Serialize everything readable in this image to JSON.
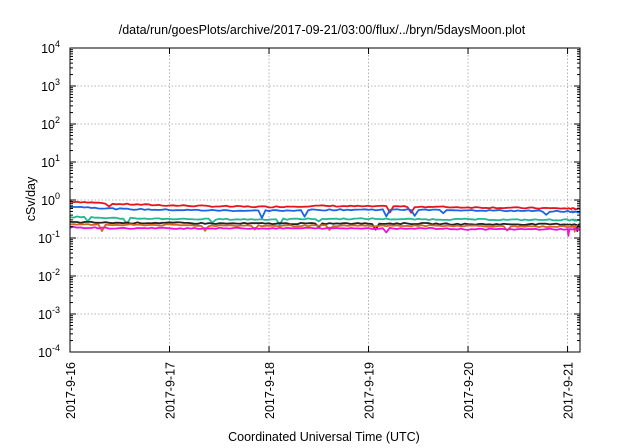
{
  "chart_data": {
    "type": "line",
    "title": "/data/run/goesPlots/archive/2017-09-21/03:00/flux/../bryn/5daysMoon.plot",
    "xlabel": "Coordinated Universal Time (UTC)",
    "ylabel": "cSv/day",
    "yscale": "log",
    "ylim": [
      0.0001,
      10000
    ],
    "y_ticks": [
      {
        "value": 0.0001,
        "mantissa": "10",
        "exp": "-4"
      },
      {
        "value": 0.001,
        "mantissa": "10",
        "exp": "-3"
      },
      {
        "value": 0.01,
        "mantissa": "10",
        "exp": "-2"
      },
      {
        "value": 0.1,
        "mantissa": "10",
        "exp": "-1"
      },
      {
        "value": 1,
        "mantissa": "10",
        "exp": "0"
      },
      {
        "value": 10,
        "mantissa": "10",
        "exp": "1"
      },
      {
        "value": 100,
        "mantissa": "10",
        "exp": "2"
      },
      {
        "value": 1000,
        "mantissa": "10",
        "exp": "3"
      },
      {
        "value": 10000,
        "mantissa": "10",
        "exp": "4"
      }
    ],
    "xlim": [
      "2017-09-16",
      "2017-09-21 03:00"
    ],
    "x_ticks": [
      "2017-9-16",
      "2017-9-17",
      "2017-9-18",
      "2017-9-19",
      "2017-9-20",
      "2017-9-21"
    ],
    "grid": true,
    "series": [
      {
        "color": "#e8141c",
        "x": [
          "2017-09-16",
          "2017-09-16 12:00",
          "2017-09-17",
          "2017-09-17 12:00",
          "2017-09-18",
          "2017-09-18 12:00",
          "2017-09-19",
          "2017-09-19 12:00",
          "2017-09-20",
          "2017-09-20 12:00",
          "2017-09-21",
          "2017-09-21 03:00"
        ],
        "y": [
          0.92,
          0.78,
          0.72,
          0.68,
          0.66,
          0.7,
          0.68,
          0.67,
          0.64,
          0.62,
          0.6,
          0.58
        ]
      },
      {
        "color": "#1a64e6",
        "x": [
          "2017-09-16",
          "2017-09-16 12:00",
          "2017-09-17",
          "2017-09-17 12:00",
          "2017-09-18",
          "2017-09-18 12:00",
          "2017-09-19",
          "2017-09-19 12:00",
          "2017-09-20",
          "2017-09-20 12:00",
          "2017-09-21",
          "2017-09-21 03:00"
        ],
        "y": [
          0.68,
          0.58,
          0.55,
          0.53,
          0.52,
          0.55,
          0.56,
          0.55,
          0.54,
          0.52,
          0.5,
          0.48
        ]
      },
      {
        "color": "#22b890",
        "x": [
          "2017-09-16",
          "2017-09-16 12:00",
          "2017-09-17",
          "2017-09-17 12:00",
          "2017-09-18",
          "2017-09-18 12:00",
          "2017-09-19",
          "2017-09-19 12:00",
          "2017-09-20",
          "2017-09-20 12:00",
          "2017-09-21",
          "2017-09-21 03:00"
        ],
        "y": [
          0.36,
          0.33,
          0.32,
          0.31,
          0.31,
          0.32,
          0.32,
          0.31,
          0.31,
          0.3,
          0.3,
          0.29
        ]
      },
      {
        "color": "#222222",
        "x": [
          "2017-09-16",
          "2017-09-16 12:00",
          "2017-09-17",
          "2017-09-17 12:00",
          "2017-09-18",
          "2017-09-18 12:00",
          "2017-09-19",
          "2017-09-19 12:00",
          "2017-09-20",
          "2017-09-20 12:00",
          "2017-09-21",
          "2017-09-21 03:00"
        ],
        "y": [
          0.26,
          0.25,
          0.25,
          0.24,
          0.24,
          0.24,
          0.24,
          0.24,
          0.23,
          0.23,
          0.23,
          0.22
        ]
      },
      {
        "color": "#d2691e",
        "x": [
          "2017-09-16",
          "2017-09-16 12:00",
          "2017-09-17",
          "2017-09-17 12:00",
          "2017-09-18",
          "2017-09-18 12:00",
          "2017-09-19",
          "2017-09-19 12:00",
          "2017-09-20",
          "2017-09-20 12:00",
          "2017-09-21",
          "2017-09-21 03:00"
        ],
        "y": [
          0.23,
          0.22,
          0.22,
          0.21,
          0.21,
          0.21,
          0.21,
          0.21,
          0.21,
          0.2,
          0.2,
          0.2
        ]
      },
      {
        "color": "#ee11dd",
        "x": [
          "2017-09-16",
          "2017-09-16 12:00",
          "2017-09-17",
          "2017-09-17 12:00",
          "2017-09-18",
          "2017-09-18 12:00",
          "2017-09-19",
          "2017-09-19 12:00",
          "2017-09-20",
          "2017-09-20 12:00",
          "2017-09-21",
          "2017-09-21 03:00"
        ],
        "y": [
          0.19,
          0.18,
          0.18,
          0.18,
          0.18,
          0.18,
          0.18,
          0.18,
          0.17,
          0.17,
          0.17,
          0.17
        ]
      }
    ]
  }
}
